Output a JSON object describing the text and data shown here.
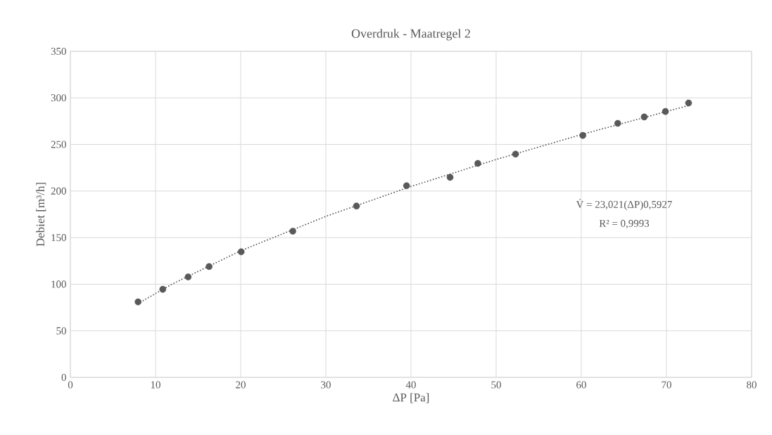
{
  "chart_data": {
    "type": "scatter",
    "title": "Overdruk - Maatregel 2",
    "xlabel": "ΔP [Pa]",
    "ylabel": "Debiet [m³/h]",
    "annotations": [
      "V̇ = 23,021(ΔP)0,5927",
      "R² = 0,9993"
    ],
    "x": [
      7.95,
      10.85,
      13.83,
      16.29,
      20.06,
      26.12,
      33.6,
      39.48,
      44.59,
      47.85,
      52.28,
      60.18,
      64.28,
      67.39,
      69.88,
      72.6
    ],
    "series": [
      {
        "color": "#595959",
        "marker": "circle",
        "values": [
          81,
          94.5,
          107.8,
          118.9,
          134.8,
          156.9,
          183.9,
          205.7,
          214.7,
          229.7,
          239.6,
          259.7,
          272.7,
          279.5,
          285.4,
          294.5
        ]
      },
      {
        "type": "line",
        "color": "#595959",
        "marker": "none",
        "line_style": "dotted",
        "x": [
          7.95,
          12,
          20,
          30,
          40,
          50,
          60,
          72.6
        ],
        "values": [
          79.3,
          100.4,
          135.9,
          172.8,
          204.9,
          233.9,
          260.6,
          291.8
        ]
      }
    ],
    "xlim": [
      0,
      80
    ],
    "ylim": [
      0,
      350
    ],
    "xticks": [
      0,
      10,
      20,
      30,
      40,
      50,
      60,
      70,
      80
    ],
    "yticks": [
      0,
      50,
      100,
      150,
      200,
      250,
      300,
      350
    ],
    "grid": true
  }
}
